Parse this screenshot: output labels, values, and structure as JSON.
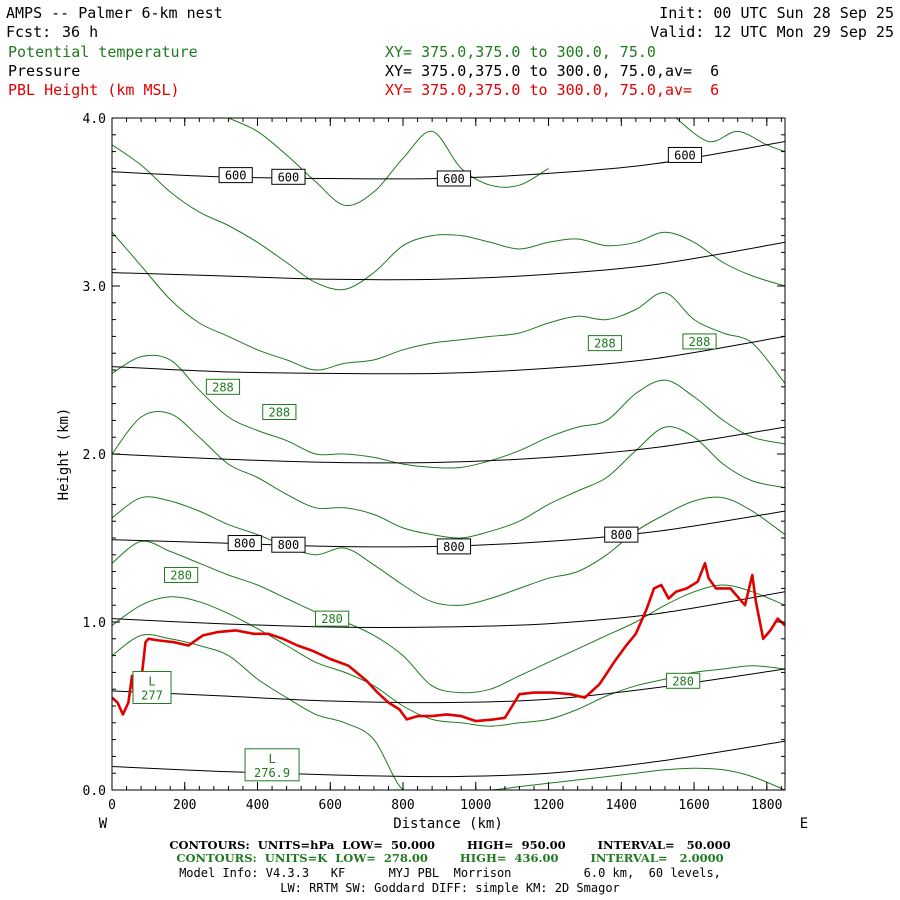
{
  "header": {
    "title": "AMPS -- Palmer 6-km nest",
    "init": "Init: 00 UTC Sun 28 Sep 25",
    "fcst_label": "Fcst:",
    "fcst_value": "36 h",
    "valid": "Valid: 12 UTC Mon 29 Sep 25",
    "field1": "Potential temperature",
    "field1_xy": "XY= 375.0,375.0 to 300.0, 75.0",
    "field2": "Pressure",
    "field2_xy": "XY= 375.0,375.0 to 300.0, 75.0,av=  6",
    "field3": "PBL Height (km MSL)",
    "field3_xy": "XY= 375.0,375.0 to 300.0, 75.0,av=  6"
  },
  "colors": {
    "theta": "#1f7a1f",
    "pressure": "#000000",
    "pbl": "#e00000"
  },
  "chart_data": {
    "type": "line",
    "xlabel": "Distance (km)",
    "ylabel": "Height (km)",
    "xlim": [
      0,
      1850
    ],
    "ylim": [
      0,
      4
    ],
    "x_ticks": [
      "0",
      "200",
      "400",
      "600",
      "800",
      "1000",
      "1200",
      "1400",
      "1600",
      "1800"
    ],
    "y_ticks": [
      "0.0",
      "1.0",
      "2.0",
      "3.0",
      "4.0"
    ],
    "x_tick_values": [
      0,
      200,
      400,
      600,
      800,
      1000,
      1200,
      1400,
      1600,
      1800
    ],
    "y_tick_values": [
      0,
      1,
      2,
      3,
      4
    ],
    "left_end": "W",
    "right_end": "E",
    "pressure_series": [
      {
        "x": [
          0,
          300,
          600,
          900,
          1200,
          1500,
          1850
        ],
        "y": [
          0.14,
          0.11,
          0.09,
          0.08,
          0.1,
          0.17,
          0.29
        ]
      },
      {
        "x": [
          0,
          300,
          600,
          900,
          1200,
          1500,
          1850
        ],
        "y": [
          0.59,
          0.56,
          0.53,
          0.52,
          0.54,
          0.61,
          0.72
        ]
      },
      {
        "x": [
          0,
          300,
          600,
          900,
          1200,
          1500,
          1850
        ],
        "y": [
          1.02,
          0.99,
          0.97,
          0.97,
          0.99,
          1.05,
          1.18
        ]
      },
      {
        "x": [
          0,
          300,
          600,
          900,
          1200,
          1500,
          1850
        ],
        "y": [
          1.49,
          1.47,
          1.45,
          1.45,
          1.48,
          1.54,
          1.66
        ]
      },
      {
        "x": [
          0,
          300,
          600,
          900,
          1200,
          1500,
          1850
        ],
        "y": [
          2.0,
          1.97,
          1.95,
          1.95,
          1.98,
          2.04,
          2.16
        ]
      },
      {
        "x": [
          0,
          300,
          600,
          900,
          1200,
          1500,
          1850
        ],
        "y": [
          2.52,
          2.49,
          2.48,
          2.48,
          2.51,
          2.57,
          2.7
        ]
      },
      {
        "x": [
          0,
          300,
          600,
          900,
          1200,
          1500,
          1850
        ],
        "y": [
          3.08,
          3.06,
          3.04,
          3.04,
          3.07,
          3.13,
          3.26
        ]
      },
      {
        "x": [
          0,
          300,
          600,
          900,
          1200,
          1500,
          1850
        ],
        "y": [
          3.68,
          3.65,
          3.64,
          3.64,
          3.67,
          3.73,
          3.86
        ]
      }
    ],
    "pressure_labels": [
      {
        "text": "600",
        "x": 340,
        "y": 3.66
      },
      {
        "text": "600",
        "x": 485,
        "y": 3.65
      },
      {
        "text": "600",
        "x": 940,
        "y": 3.64
      },
      {
        "text": "600",
        "x": 1575,
        "y": 3.78
      },
      {
        "text": "800",
        "x": 365,
        "y": 1.47
      },
      {
        "text": "800",
        "x": 485,
        "y": 1.46
      },
      {
        "text": "800",
        "x": 940,
        "y": 1.45
      },
      {
        "text": "800",
        "x": 1400,
        "y": 1.52
      }
    ],
    "theta_series": [
      {
        "x": [
          0,
          80,
          160,
          240,
          320,
          400,
          480,
          560,
          640,
          720,
          800,
          880,
          960,
          1040,
          1120,
          1200,
          1280,
          1360,
          1440,
          1520,
          1600,
          1680,
          1760,
          1850
        ],
        "y": [
          0.8,
          0.92,
          0.9,
          0.86,
          0.8,
          0.66,
          0.55,
          0.45,
          0.4,
          0.3,
          0.0,
          0.0,
          0.0,
          0.0,
          0.02,
          0.04,
          0.06,
          0.08,
          0.1,
          0.12,
          0.13,
          0.12,
          0.08,
          0.0
        ]
      },
      {
        "x": [
          0,
          80,
          160,
          240,
          320,
          400,
          480,
          560,
          640,
          720,
          800,
          880,
          960,
          1040,
          1120,
          1200,
          1280,
          1360,
          1440,
          1520,
          1600,
          1680,
          1760,
          1850
        ],
        "y": [
          0.98,
          1.1,
          1.15,
          1.12,
          1.05,
          0.96,
          0.86,
          0.76,
          0.7,
          0.62,
          0.5,
          0.42,
          0.4,
          0.38,
          0.4,
          0.42,
          0.48,
          0.56,
          0.62,
          0.66,
          0.7,
          0.72,
          0.74,
          0.72
        ]
      },
      {
        "x": [
          0,
          80,
          160,
          240,
          320,
          400,
          480,
          560,
          640,
          720,
          800,
          880,
          960,
          1040,
          1120,
          1200,
          1280,
          1360,
          1440,
          1520,
          1600,
          1680,
          1760,
          1850
        ],
        "y": [
          1.35,
          1.48,
          1.42,
          1.35,
          1.28,
          1.22,
          1.14,
          1.06,
          1.0,
          0.92,
          0.8,
          0.62,
          0.58,
          0.6,
          0.68,
          0.76,
          0.84,
          0.92,
          1.0,
          1.1,
          1.18,
          1.22,
          1.18,
          1.1
        ]
      },
      {
        "x": [
          0,
          80,
          160,
          240,
          320,
          400,
          480,
          560,
          640,
          720,
          800,
          880,
          960,
          1040,
          1120,
          1200,
          1280,
          1360,
          1440,
          1520,
          1600,
          1680,
          1760,
          1850
        ],
        "y": [
          1.62,
          1.74,
          1.72,
          1.66,
          1.58,
          1.52,
          1.45,
          1.4,
          1.44,
          1.34,
          1.22,
          1.12,
          1.1,
          1.14,
          1.2,
          1.26,
          1.3,
          1.4,
          1.54,
          1.64,
          1.72,
          1.74,
          1.66,
          1.52
        ]
      },
      {
        "x": [
          0,
          80,
          160,
          240,
          320,
          400,
          480,
          560,
          640,
          720,
          800,
          880,
          960,
          1040,
          1120,
          1200,
          1280,
          1360,
          1440,
          1520,
          1600,
          1680,
          1760,
          1850
        ],
        "y": [
          2.0,
          2.22,
          2.24,
          2.1,
          1.94,
          1.86,
          1.76,
          1.68,
          1.68,
          1.64,
          1.56,
          1.52,
          1.5,
          1.54,
          1.6,
          1.7,
          1.78,
          1.86,
          2.02,
          2.16,
          2.1,
          1.94,
          1.84,
          1.8
        ]
      },
      {
        "x": [
          0,
          80,
          160,
          240,
          320,
          400,
          480,
          560,
          640,
          720,
          800,
          880,
          960,
          1040,
          1120,
          1200,
          1280,
          1360,
          1440,
          1520,
          1600,
          1680,
          1760,
          1850
        ],
        "y": [
          2.48,
          2.58,
          2.56,
          2.38,
          2.22,
          2.14,
          2.08,
          2.0,
          2.0,
          1.98,
          1.94,
          1.92,
          1.92,
          1.96,
          2.02,
          2.1,
          2.16,
          2.2,
          2.36,
          2.44,
          2.34,
          2.2,
          2.1,
          2.06
        ]
      },
      {
        "x": [
          0,
          80,
          160,
          240,
          320,
          400,
          480,
          560,
          640,
          720,
          800,
          880,
          960,
          1040,
          1120,
          1200,
          1280,
          1360,
          1440,
          1520,
          1600,
          1680,
          1760,
          1850
        ],
        "y": [
          3.32,
          3.12,
          2.92,
          2.78,
          2.7,
          2.62,
          2.56,
          2.5,
          2.54,
          2.56,
          2.62,
          2.66,
          2.68,
          2.7,
          2.72,
          2.78,
          2.82,
          2.8,
          2.86,
          2.96,
          2.8,
          2.72,
          2.66,
          2.42
        ]
      },
      {
        "x": [
          0,
          80,
          160,
          240,
          320,
          400,
          480,
          560,
          640,
          720,
          800,
          880,
          960,
          1040,
          1120,
          1200,
          1280,
          1360,
          1440,
          1520,
          1600,
          1680,
          1760,
          1850
        ],
        "y": [
          3.84,
          3.72,
          3.56,
          3.44,
          3.36,
          3.26,
          3.14,
          3.02,
          2.98,
          3.08,
          3.24,
          3.3,
          3.3,
          3.26,
          3.22,
          3.26,
          3.28,
          3.24,
          3.26,
          3.32,
          3.26,
          3.14,
          3.06,
          3.0
        ]
      },
      {
        "x": [
          320,
          400,
          480,
          560,
          640,
          720,
          800,
          880,
          960,
          1040,
          1120,
          1200
        ],
        "y": [
          4.0,
          3.92,
          3.78,
          3.62,
          3.48,
          3.56,
          3.76,
          3.92,
          3.7,
          3.6,
          3.6,
          3.7
        ]
      },
      {
        "x": [
          1550,
          1640,
          1720,
          1800,
          1850
        ],
        "y": [
          4.0,
          3.86,
          3.92,
          3.84,
          3.8
        ]
      }
    ],
    "theta_labels": [
      {
        "text": "288",
        "x": 305,
        "y": 2.4
      },
      {
        "text": "288",
        "x": 460,
        "y": 2.25
      },
      {
        "text": "288",
        "x": 1355,
        "y": 2.66
      },
      {
        "text": "288",
        "x": 1615,
        "y": 2.67
      },
      {
        "text": "280",
        "x": 190,
        "y": 1.28
      },
      {
        "text": "280",
        "x": 605,
        "y": 1.02
      },
      {
        "text": "280",
        "x": 1570,
        "y": 0.65
      }
    ],
    "lows": [
      {
        "letter": "L",
        "value": "277",
        "x": 110,
        "y": 0.61
      },
      {
        "letter": "L",
        "value": "276.9",
        "x": 440,
        "y": 0.15
      }
    ],
    "pbl_series": {
      "name": "PBL Height (km MSL)",
      "x": [
        0,
        15,
        30,
        45,
        55,
        60,
        68,
        75,
        85,
        92,
        100,
        130,
        170,
        210,
        250,
        290,
        340,
        390,
        430,
        470,
        510,
        550,
        600,
        650,
        700,
        730,
        760,
        790,
        810,
        840,
        880,
        920,
        960,
        1000,
        1050,
        1080,
        1100,
        1120,
        1160,
        1210,
        1260,
        1300,
        1340,
        1380,
        1410,
        1440,
        1470,
        1490,
        1510,
        1530,
        1550,
        1580,
        1610,
        1630,
        1640,
        1660,
        1700,
        1740,
        1760,
        1770,
        1790,
        1810,
        1830,
        1850
      ],
      "y": [
        0.55,
        0.52,
        0.45,
        0.52,
        0.68,
        0.58,
        0.63,
        0.55,
        0.74,
        0.88,
        0.9,
        0.89,
        0.88,
        0.86,
        0.92,
        0.94,
        0.95,
        0.93,
        0.93,
        0.9,
        0.86,
        0.83,
        0.78,
        0.74,
        0.65,
        0.58,
        0.52,
        0.48,
        0.42,
        0.44,
        0.44,
        0.45,
        0.44,
        0.41,
        0.42,
        0.43,
        0.5,
        0.57,
        0.58,
        0.58,
        0.57,
        0.55,
        0.63,
        0.76,
        0.85,
        0.93,
        1.08,
        1.2,
        1.22,
        1.14,
        1.18,
        1.2,
        1.24,
        1.35,
        1.26,
        1.2,
        1.2,
        1.1,
        1.28,
        1.12,
        0.9,
        0.95,
        1.02,
        0.98
      ]
    }
  },
  "footer": {
    "contours_hpa": "CONTOURS:  UNITS=hPa  LOW=  50.000        HIGH=  950.00        INTERVAL=   50.000",
    "contours_k": "CONTOURS:  UNITS=K  LOW=  278.00        HIGH=  436.00        INTERVAL=   2.0000",
    "model_info": "Model Info: V4.3.3   KF      MYJ PBL  Morrison          6.0 km,  60 levels,",
    "model_info2": "LW: RRTM SW: Goddard DIFF: simple KM: 2D Smagor"
  }
}
